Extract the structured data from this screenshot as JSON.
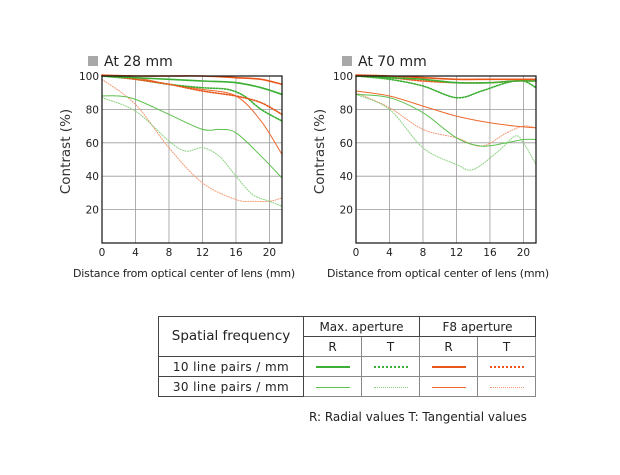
{
  "chart_data": [
    {
      "type": "line",
      "title": "At 28 mm",
      "xlabel": "Distance from optical center of lens (mm)",
      "ylabel": "Contrast (%)",
      "xlim": [
        0,
        21.5
      ],
      "ylim": [
        0,
        100
      ],
      "xticks": [
        0,
        4,
        8,
        12,
        16,
        20
      ],
      "yticks": [
        20,
        40,
        60,
        80,
        100
      ],
      "grid": true,
      "series": [
        {
          "name": "Max. aperture R 10 lp/mm",
          "key": "max_r_10",
          "x": [
            0,
            4,
            8,
            12,
            16,
            19,
            21.5
          ],
          "y": [
            100,
            99,
            98,
            97,
            96,
            93,
            89
          ]
        },
        {
          "name": "Max. aperture T 10 lp/mm",
          "key": "max_t_10",
          "x": [
            0,
            4,
            8,
            12,
            15,
            17,
            19,
            21.5
          ],
          "y": [
            100,
            98,
            95,
            93,
            92,
            88,
            80,
            73
          ]
        },
        {
          "name": "F8 aperture R 10 lp/mm",
          "key": "f8_r_10",
          "x": [
            0,
            4,
            8,
            12,
            16,
            19,
            21.5
          ],
          "y": [
            100.5,
            100,
            100,
            100,
            99,
            98,
            95
          ]
        },
        {
          "name": "F8 aperture T 10 lp/mm",
          "key": "f8_t_10",
          "x": [
            0,
            4,
            8,
            12,
            16,
            19,
            21.5
          ],
          "y": [
            101,
            98,
            95,
            91,
            88,
            84,
            77
          ]
        },
        {
          "name": "Max. aperture R 30 lp/mm",
          "key": "max_r_30",
          "x": [
            0,
            2,
            4,
            8,
            12,
            14,
            16,
            19,
            21.5
          ],
          "y": [
            88,
            88,
            86,
            77,
            68,
            68,
            66,
            52,
            39
          ]
        },
        {
          "name": "Max. aperture T 30 lp/mm",
          "key": "max_t_30",
          "x": [
            0,
            4,
            8,
            10,
            12,
            14,
            16,
            18,
            20,
            21.5
          ],
          "y": [
            87,
            79,
            61,
            55,
            57,
            52,
            40,
            29,
            25,
            22
          ]
        },
        {
          "name": "F8 aperture R 30 lp/mm",
          "key": "f8_r_30",
          "x": [
            0,
            4,
            8,
            12,
            16,
            19,
            21.5
          ],
          "y": [
            100,
            99,
            95,
            92,
            88,
            73,
            53
          ]
        },
        {
          "name": "F8 aperture T 30 lp/mm",
          "key": "f8_t_30",
          "x": [
            0,
            4,
            8,
            12,
            16,
            18,
            20,
            21.5
          ],
          "y": [
            98,
            83,
            57,
            36,
            26,
            25,
            25,
            27
          ]
        }
      ]
    },
    {
      "type": "line",
      "title": "At 70 mm",
      "xlabel": "Distance from optical center of lens (mm)",
      "ylabel": "Contrast (%)",
      "xlim": [
        0,
        21.5
      ],
      "ylim": [
        0,
        100
      ],
      "xticks": [
        0,
        4,
        8,
        12,
        16,
        20
      ],
      "yticks": [
        20,
        40,
        60,
        80,
        100
      ],
      "grid": true,
      "series": [
        {
          "name": "Max. aperture R 10 lp/mm",
          "key": "max_r_10",
          "x": [
            0,
            4,
            8,
            12,
            16,
            19,
            21.5
          ],
          "y": [
            100,
            99,
            98,
            96,
            96,
            97,
            97
          ]
        },
        {
          "name": "Max. aperture T 10 lp/mm",
          "key": "max_t_10",
          "x": [
            0,
            4,
            8,
            12,
            15,
            18,
            20,
            21.5
          ],
          "y": [
            100,
            98,
            94,
            87,
            91,
            96,
            97,
            93
          ]
        },
        {
          "name": "F8 aperture R 10 lp/mm",
          "key": "f8_r_10",
          "x": [
            0,
            4,
            8,
            12,
            16,
            19,
            21.5
          ],
          "y": [
            101,
            100,
            99,
            98,
            98,
            98,
            98
          ]
        },
        {
          "name": "F8 aperture T 10 lp/mm",
          "key": "f8_t_10",
          "x": [
            0,
            4,
            8,
            12,
            16,
            19,
            21.5
          ],
          "y": [
            100,
            99,
            97,
            96,
            96,
            97,
            97
          ]
        },
        {
          "name": "Max. aperture R 30 lp/mm",
          "key": "max_r_30",
          "x": [
            0,
            4,
            8,
            12,
            15,
            18,
            20,
            21.5
          ],
          "y": [
            89,
            87,
            78,
            63,
            58,
            60,
            62,
            62
          ]
        },
        {
          "name": "Max. aperture T 30 lp/mm",
          "key": "max_t_30",
          "x": [
            0,
            4,
            8,
            12,
            14,
            17,
            19,
            20,
            21.5
          ],
          "y": [
            89,
            80,
            57,
            47,
            44,
            55,
            64,
            60,
            47
          ]
        },
        {
          "name": "F8 aperture R 30 lp/mm",
          "key": "f8_r_30",
          "x": [
            0,
            4,
            8,
            12,
            16,
            19,
            21.5
          ],
          "y": [
            91,
            88,
            82,
            76,
            72,
            70,
            69
          ]
        },
        {
          "name": "F8 aperture T 30 lp/mm",
          "key": "f8_t_30",
          "x": [
            0,
            4,
            8,
            12,
            15,
            18,
            20,
            21.5
          ],
          "y": [
            90,
            81,
            68,
            63,
            58,
            66,
            70,
            69
          ]
        }
      ]
    }
  ],
  "styles": {
    "max_r_10": {
      "color": "#3cb034",
      "dashed": false,
      "heavy": true
    },
    "max_t_10": {
      "color": "#3cb034",
      "dashed": true,
      "heavy": true
    },
    "f8_r_10": {
      "color": "#e8561a",
      "dashed": false,
      "heavy": true
    },
    "f8_t_10": {
      "color": "#e8561a",
      "dashed": true,
      "heavy": true
    },
    "max_r_30": {
      "color": "#5cc04c",
      "dashed": false,
      "heavy": false
    },
    "max_t_30": {
      "color": "#88d07c",
      "dashed": true,
      "heavy": false
    },
    "f8_r_30": {
      "color": "#ec6a30",
      "dashed": false,
      "heavy": false
    },
    "f8_t_30": {
      "color": "#f29870",
      "dashed": true,
      "heavy": false
    }
  },
  "legend": {
    "spatial_frequency": "Spatial frequency",
    "max_aperture": "Max. aperture",
    "f8_aperture": "F8 aperture",
    "r": "R",
    "t": "T",
    "rows": [
      {
        "label": "10 line pairs / mm",
        "keys": [
          "max_r_10",
          "max_t_10",
          "f8_r_10",
          "f8_t_10"
        ]
      },
      {
        "label": "30 line pairs / mm",
        "keys": [
          "max_r_30",
          "max_t_30",
          "f8_r_30",
          "f8_t_30"
        ]
      }
    ],
    "footnote": "R: Radial values  T: Tangential values"
  }
}
